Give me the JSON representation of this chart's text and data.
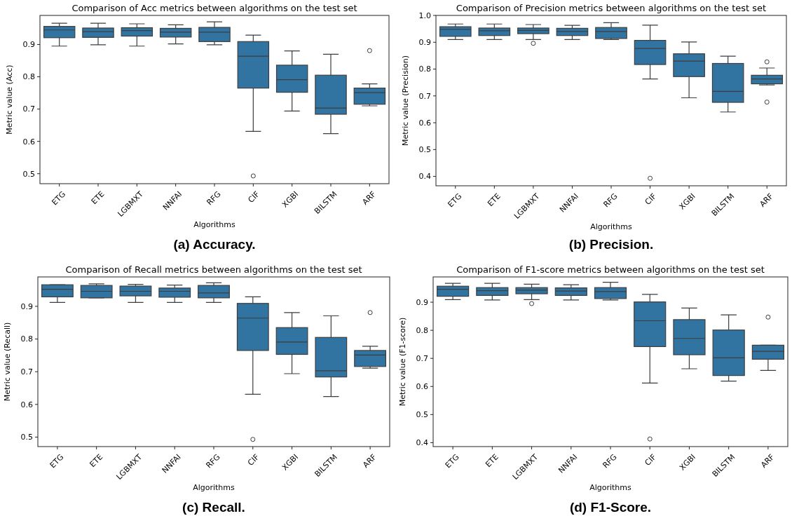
{
  "chart_data": [
    {
      "type": "box",
      "title": "Comparison of Acc metrics between algorithms on the test set",
      "xlabel": "Algorithms",
      "ylabel": "Metric value (Acc)",
      "color": "#3274a1",
      "ylim": [
        0.469,
        0.99
      ],
      "yticks": [
        0.5,
        0.6,
        0.7,
        0.8,
        0.9
      ],
      "annotations": [
        "(a) Accuracy."
      ],
      "categories": [
        "ETG",
        "ETE",
        "LGBMXT",
        "NNFAI",
        "RFG",
        "CIF",
        "XGBI",
        "BILSTM",
        "ARF"
      ],
      "boxes": [
        {
          "low": 0.895,
          "q1": 0.921,
          "median": 0.945,
          "q3": 0.956,
          "high": 0.966
        },
        {
          "low": 0.899,
          "q1": 0.922,
          "median": 0.94,
          "q3": 0.951,
          "high": 0.966
        },
        {
          "low": 0.895,
          "q1": 0.926,
          "median": 0.943,
          "q3": 0.952,
          "high": 0.964
        },
        {
          "low": 0.902,
          "q1": 0.923,
          "median": 0.938,
          "q3": 0.95,
          "high": 0.961
        },
        {
          "low": 0.899,
          "q1": 0.909,
          "median": 0.938,
          "q3": 0.953,
          "high": 0.97
        },
        {
          "low": 0.631,
          "q1": 0.765,
          "median": 0.864,
          "q3": 0.909,
          "high": 0.929,
          "outliers": [
            0.493
          ]
        },
        {
          "low": 0.694,
          "q1": 0.752,
          "median": 0.791,
          "q3": 0.836,
          "high": 0.88
        },
        {
          "low": 0.624,
          "q1": 0.684,
          "median": 0.703,
          "q3": 0.805,
          "high": 0.87
        },
        {
          "low": 0.71,
          "q1": 0.715,
          "median": 0.751,
          "q3": 0.765,
          "high": 0.778,
          "outliers": [
            0.881
          ]
        }
      ]
    },
    {
      "type": "box",
      "title": "Comparison of Precision metrics between algorithms on the test set",
      "xlabel": "Algorithms",
      "ylabel": "Metric value (Precision)",
      "color": "#3274a1",
      "ylim": [
        0.365,
        1.0
      ],
      "yticks": [
        0.4,
        0.5,
        0.6,
        0.7,
        0.8,
        0.9,
        {
          "value": 1.0,
          "label": "1.0"
        }
      ],
      "annotations": [
        "(b) Precision."
      ],
      "categories": [
        "ETG",
        "ETE",
        "LGBMXT",
        "NNFAI",
        "RFG",
        "CIF",
        "XGBI",
        "BILSTM",
        "ARF"
      ],
      "boxes": [
        {
          "low": 0.91,
          "q1": 0.922,
          "median": 0.948,
          "q3": 0.958,
          "high": 0.968
        },
        {
          "low": 0.91,
          "q1": 0.925,
          "median": 0.943,
          "q3": 0.953,
          "high": 0.968
        },
        {
          "low": 0.91,
          "q1": 0.932,
          "median": 0.944,
          "q3": 0.953,
          "high": 0.966,
          "outliers": [
            0.896
          ]
        },
        {
          "low": 0.91,
          "q1": 0.925,
          "median": 0.94,
          "q3": 0.952,
          "high": 0.963
        },
        {
          "low": 0.91,
          "q1": 0.914,
          "median": 0.94,
          "q3": 0.955,
          "high": 0.973
        },
        {
          "low": 0.763,
          "q1": 0.817,
          "median": 0.877,
          "q3": 0.907,
          "high": 0.964,
          "outliers": [
            0.393
          ]
        },
        {
          "low": 0.693,
          "q1": 0.772,
          "median": 0.83,
          "q3": 0.857,
          "high": 0.901
        },
        {
          "low": 0.64,
          "q1": 0.676,
          "median": 0.717,
          "q3": 0.821,
          "high": 0.848
        },
        {
          "low": 0.741,
          "q1": 0.745,
          "median": 0.763,
          "q3": 0.777,
          "high": 0.804,
          "outliers": [
            0.827,
            0.677
          ]
        }
      ]
    },
    {
      "type": "box",
      "title": "Comparison of Recall metrics between algorithms on the test set",
      "xlabel": "Algorithms",
      "ylabel": "Metric value (Recall)",
      "color": "#3274a1",
      "ylim": [
        0.471,
        0.99
      ],
      "yticks": [
        0.5,
        0.6,
        0.7,
        0.8,
        0.9
      ],
      "annotations": [
        "(c) Recall."
      ],
      "categories": [
        "ETG",
        "ETE",
        "LGBMXT",
        "NNFAI",
        "RFG",
        "CIF",
        "XGBI",
        "BILSTM",
        "ARF"
      ],
      "boxes": [
        {
          "low": 0.912,
          "q1": 0.929,
          "median": 0.952,
          "q3": 0.966,
          "high": 0.966
        },
        {
          "low": 0.926,
          "q1": 0.926,
          "median": 0.946,
          "q3": 0.964,
          "high": 0.969
        },
        {
          "low": 0.912,
          "q1": 0.932,
          "median": 0.946,
          "q3": 0.962,
          "high": 0.967
        },
        {
          "low": 0.912,
          "q1": 0.928,
          "median": 0.946,
          "q3": 0.956,
          "high": 0.965
        },
        {
          "low": 0.912,
          "q1": 0.926,
          "median": 0.941,
          "q3": 0.964,
          "high": 0.972
        },
        {
          "low": 0.631,
          "q1": 0.765,
          "median": 0.864,
          "q3": 0.909,
          "high": 0.929,
          "outliers": [
            0.493
          ]
        },
        {
          "low": 0.694,
          "q1": 0.753,
          "median": 0.791,
          "q3": 0.835,
          "high": 0.881
        },
        {
          "low": 0.624,
          "q1": 0.684,
          "median": 0.703,
          "q3": 0.805,
          "high": 0.871
        },
        {
          "low": 0.711,
          "q1": 0.716,
          "median": 0.751,
          "q3": 0.765,
          "high": 0.778,
          "outliers": [
            0.881
          ]
        }
      ]
    },
    {
      "type": "box",
      "title": "Comparison of F1-score metrics between algorithms on the test set",
      "xlabel": "Algorithms",
      "ylabel": "Metric value (F1-score)",
      "color": "#3274a1",
      "ylim": [
        0.386,
        0.99
      ],
      "yticks": [
        0.4,
        0.5,
        0.6,
        0.7,
        0.8,
        0.9
      ],
      "annotations": [
        "(d) F1-Score."
      ],
      "categories": [
        "ETG",
        "ETE",
        "LGBMXT",
        "NNFAI",
        "RFG",
        "CIF",
        "XGBI",
        "BILSTM",
        "ARF"
      ],
      "boxes": [
        {
          "low": 0.909,
          "q1": 0.921,
          "median": 0.946,
          "q3": 0.957,
          "high": 0.967
        },
        {
          "low": 0.908,
          "q1": 0.924,
          "median": 0.941,
          "q3": 0.952,
          "high": 0.967
        },
        {
          "low": 0.909,
          "q1": 0.93,
          "median": 0.943,
          "q3": 0.952,
          "high": 0.964,
          "outliers": [
            0.895
          ]
        },
        {
          "low": 0.908,
          "q1": 0.924,
          "median": 0.94,
          "q3": 0.951,
          "high": 0.962
        },
        {
          "low": 0.908,
          "q1": 0.913,
          "median": 0.938,
          "q3": 0.952,
          "high": 0.971
        },
        {
          "low": 0.612,
          "q1": 0.742,
          "median": 0.834,
          "q3": 0.901,
          "high": 0.928,
          "outliers": [
            0.413
          ]
        },
        {
          "low": 0.663,
          "q1": 0.713,
          "median": 0.771,
          "q3": 0.838,
          "high": 0.879
        },
        {
          "low": 0.619,
          "q1": 0.639,
          "median": 0.702,
          "q3": 0.801,
          "high": 0.855
        },
        {
          "low": 0.657,
          "q1": 0.697,
          "median": 0.725,
          "q3": 0.747,
          "high": 0.747,
          "outliers": [
            0.847
          ]
        }
      ]
    }
  ]
}
